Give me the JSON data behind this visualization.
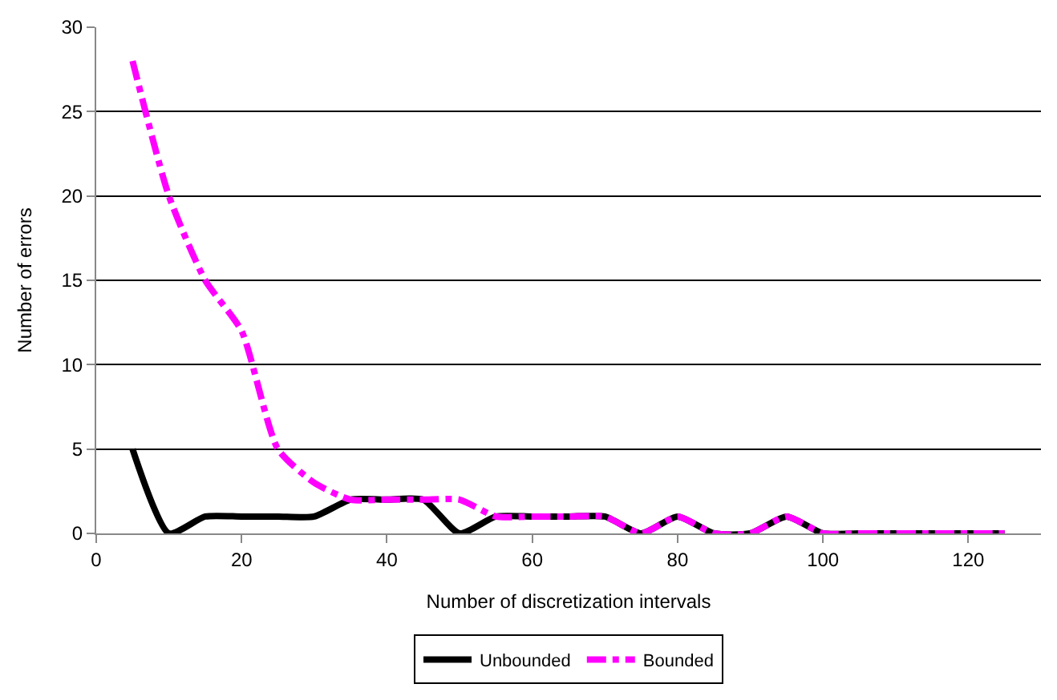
{
  "chart_data": {
    "type": "line",
    "xlabel": "Number of discretization intervals",
    "ylabel": "Number of errors",
    "x": [
      5,
      10,
      15,
      20,
      25,
      30,
      35,
      40,
      45,
      50,
      55,
      60,
      65,
      70,
      75,
      80,
      85,
      90,
      95,
      100,
      105,
      110,
      115,
      120,
      125
    ],
    "series": [
      {
        "name": "Unbounded",
        "color": "#000000",
        "line_style": "solid",
        "values": [
          5,
          0,
          1,
          1,
          1,
          1,
          2,
          2,
          2,
          0,
          1,
          1,
          1,
          1,
          0,
          1,
          0,
          0,
          1,
          0,
          0,
          0,
          0,
          0,
          0
        ]
      },
      {
        "name": "Bounded",
        "color": "#ff00ff",
        "line_style": "dashdot",
        "values": [
          28,
          20,
          15,
          12,
          5,
          3,
          2,
          2,
          2,
          2,
          1,
          1,
          1,
          1,
          0,
          1,
          0,
          0,
          1,
          0,
          0,
          0,
          0,
          0,
          0
        ]
      }
    ],
    "xlim": [
      0,
      130
    ],
    "xticks": [
      0,
      20,
      40,
      60,
      80,
      100,
      120
    ],
    "ylim": [
      0,
      30
    ],
    "yticks": [
      0,
      5,
      10,
      15,
      20,
      25,
      30
    ],
    "grid": "y",
    "legend": "bottom",
    "marker": "none"
  }
}
